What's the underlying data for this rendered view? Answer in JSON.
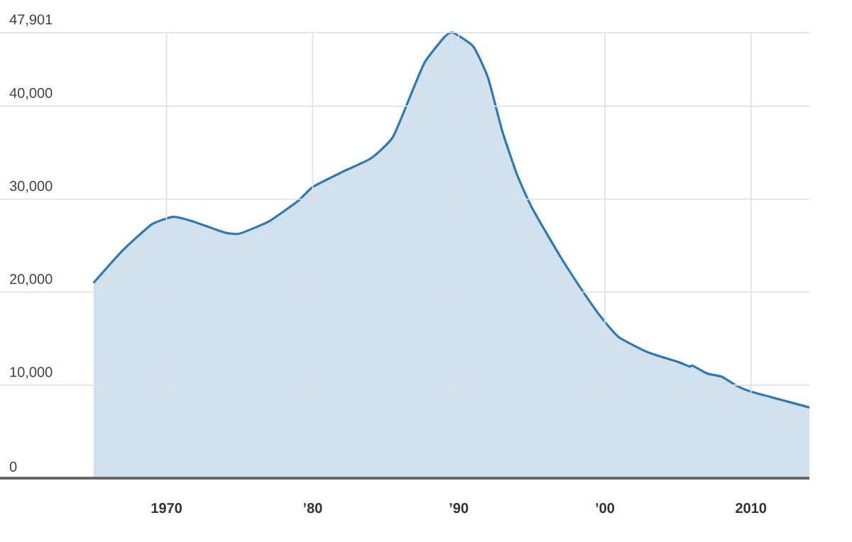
{
  "chart_data": {
    "type": "area",
    "x": [
      1965,
      1967,
      1969,
      1970.5,
      1972,
      1974,
      1975,
      1977,
      1979,
      1980,
      1982,
      1984,
      1985.5,
      1987,
      1987.7,
      1989,
      1989.6,
      1991,
      1992,
      1993,
      1994,
      1995,
      1997,
      1999,
      2000,
      2001,
      2003,
      2005,
      2005.8,
      2006,
      2007,
      2008,
      2009,
      2010,
      2012,
      2014
    ],
    "series": [
      {
        "color": "#2e78b4",
        "values": [
          21000,
          24500,
          27300,
          28100,
          27500,
          26400,
          26300,
          27600,
          29800,
          31300,
          32900,
          34400,
          36700,
          42300,
          44800,
          47400,
          47901,
          46400,
          43050,
          37200,
          32600,
          29100,
          23700,
          18900,
          16800,
          15100,
          13500,
          12500,
          12000,
          12100,
          11250,
          10900,
          9950,
          9300,
          8450,
          7600
        ]
      }
    ],
    "xlim": [
      1958.6,
      2014
    ],
    "ylim": [
      0,
      47901
    ],
    "xticks": [
      {
        "value": 1970,
        "label": "1970"
      },
      {
        "value": 1980,
        "label": "’80"
      },
      {
        "value": 1990,
        "label": "’90"
      },
      {
        "value": 2000,
        "label": "’00"
      },
      {
        "value": 2010,
        "label": "2010"
      }
    ],
    "yticks": [
      {
        "value": 0,
        "label": "0"
      },
      {
        "value": 10000,
        "label": "10,000"
      },
      {
        "value": 20000,
        "label": "20,000"
      },
      {
        "value": 30000,
        "label": "30,000"
      },
      {
        "value": 40000,
        "label": "40,000"
      },
      {
        "value": 47901,
        "label": "47,901"
      }
    ],
    "grid": true
  }
}
